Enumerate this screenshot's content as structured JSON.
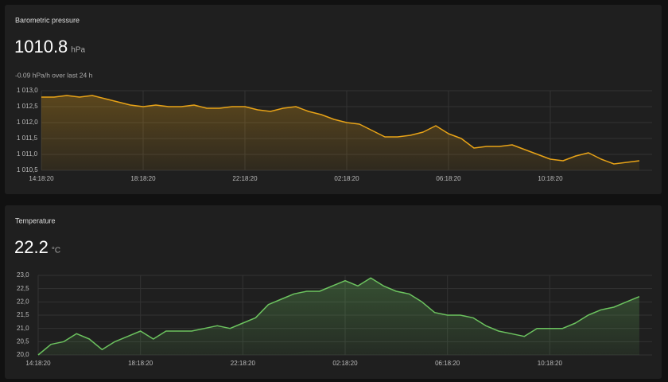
{
  "chart_data": [
    {
      "type": "line",
      "title": "Barometric pressure",
      "current_value": 1010.8,
      "unit": "hPa",
      "subtitle": "-0.09 hPa/h over last 24 h",
      "color": "#e8a317",
      "grid": true,
      "x": [
        "14:18:20",
        "14:48:20",
        "15:18:20",
        "15:48:20",
        "16:18:20",
        "16:48:20",
        "17:18:20",
        "17:48:20",
        "18:18:20",
        "18:48:20",
        "19:18:20",
        "19:48:20",
        "20:18:20",
        "20:48:20",
        "21:18:20",
        "21:48:20",
        "22:18:20",
        "22:48:20",
        "23:18:20",
        "23:48:20",
        "00:18:20",
        "00:48:20",
        "01:18:20",
        "01:48:20",
        "02:18:20",
        "02:48:20",
        "03:18:20",
        "03:48:20",
        "04:18:20",
        "04:48:20",
        "05:18:20",
        "05:48:20",
        "06:18:20",
        "06:48:20",
        "07:18:20",
        "07:48:20",
        "08:18:20",
        "08:48:20",
        "09:18:20",
        "09:48:20",
        "10:18:20",
        "10:48:20",
        "11:18:20",
        "11:48:20",
        "12:18:20",
        "12:48:20",
        "13:18:20",
        "13:48:20"
      ],
      "values": [
        1012.8,
        1012.8,
        1012.85,
        1012.8,
        1012.85,
        1012.75,
        1012.65,
        1012.55,
        1012.5,
        1012.55,
        1012.5,
        1012.5,
        1012.55,
        1012.45,
        1012.45,
        1012.5,
        1012.5,
        1012.4,
        1012.35,
        1012.45,
        1012.5,
        1012.35,
        1012.25,
        1012.1,
        1012.0,
        1011.95,
        1011.75,
        1011.55,
        1011.55,
        1011.6,
        1011.7,
        1011.9,
        1011.65,
        1011.5,
        1011.2,
        1011.25,
        1011.25,
        1011.3,
        1011.15,
        1011.0,
        1010.85,
        1010.8,
        1010.95,
        1011.05,
        1010.85,
        1010.7,
        1010.75,
        1010.8
      ],
      "ylim": [
        1010.5,
        1013
      ],
      "yticks": [
        {
          "value": 1010.5,
          "label": "1 010,5"
        },
        {
          "value": 1011,
          "label": "1 011,0"
        },
        {
          "value": 1011.5,
          "label": "1 011,5"
        },
        {
          "value": 1012,
          "label": "1 012,0"
        },
        {
          "value": 1012.5,
          "label": "1 012,5"
        },
        {
          "value": 1013,
          "label": "1 013,0"
        }
      ],
      "xticks": [
        "14:18:20",
        "18:18:20",
        "22:18:20",
        "02:18:20",
        "06:18:20",
        "10:18:20"
      ]
    },
    {
      "type": "line",
      "title": "Temperature",
      "current_value": 22.2,
      "unit": "°C",
      "color": "#6cc35f",
      "grid": true,
      "x": [
        "14:18:20",
        "14:48:20",
        "15:18:20",
        "15:48:20",
        "16:18:20",
        "16:48:20",
        "17:18:20",
        "17:48:20",
        "18:18:20",
        "18:48:20",
        "19:18:20",
        "19:48:20",
        "20:18:20",
        "20:48:20",
        "21:18:20",
        "21:48:20",
        "22:18:20",
        "22:48:20",
        "23:18:20",
        "23:48:20",
        "00:18:20",
        "00:48:20",
        "01:18:20",
        "01:48:20",
        "02:18:20",
        "02:48:20",
        "03:18:20",
        "03:48:20",
        "04:18:20",
        "04:48:20",
        "05:18:20",
        "05:48:20",
        "06:18:20",
        "06:48:20",
        "07:18:20",
        "07:48:20",
        "08:18:20",
        "08:48:20",
        "09:18:20",
        "09:48:20",
        "10:18:20",
        "10:48:20",
        "11:18:20",
        "11:48:20",
        "12:18:20",
        "12:48:20",
        "13:18:20",
        "13:48:20"
      ],
      "values": [
        20.0,
        20.4,
        20.5,
        20.8,
        20.6,
        20.2,
        20.5,
        20.7,
        20.9,
        20.6,
        20.9,
        20.9,
        20.9,
        21.0,
        21.1,
        21.0,
        21.2,
        21.4,
        21.9,
        22.1,
        22.3,
        22.4,
        22.4,
        22.6,
        22.8,
        22.6,
        22.9,
        22.6,
        22.4,
        22.3,
        22.0,
        21.6,
        21.5,
        21.5,
        21.4,
        21.1,
        20.9,
        20.8,
        20.7,
        21.0,
        21.0,
        21.0,
        21.2,
        21.5,
        21.7,
        21.8,
        22.0,
        22.2
      ],
      "ylim": [
        20,
        23
      ],
      "yticks": [
        {
          "value": 20,
          "label": "20,0"
        },
        {
          "value": 20.5,
          "label": "20,5"
        },
        {
          "value": 21,
          "label": "21,0"
        },
        {
          "value": 21.5,
          "label": "21,5"
        },
        {
          "value": 22,
          "label": "22,0"
        },
        {
          "value": 22.5,
          "label": "22,5"
        },
        {
          "value": 23,
          "label": "23,0"
        }
      ],
      "xticks": [
        "14:18:20",
        "18:18:20",
        "22:18:20",
        "02:18:20",
        "06:18:20",
        "10:18:20"
      ]
    }
  ]
}
